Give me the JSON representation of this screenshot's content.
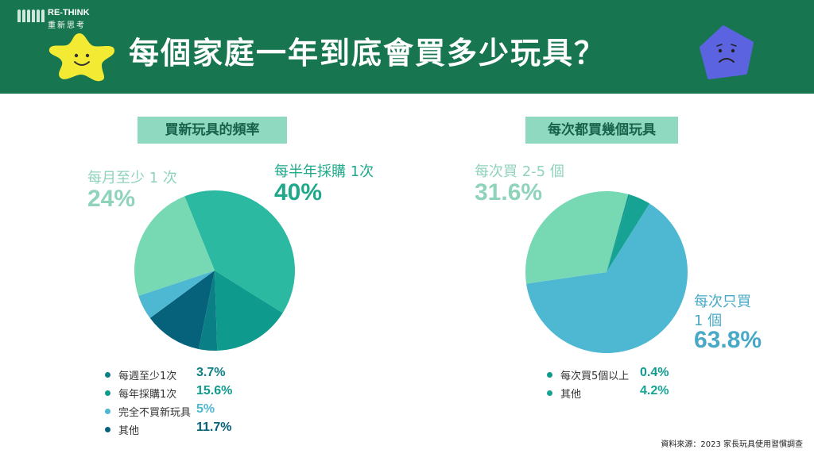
{
  "logo": {
    "name": "RE-THINK",
    "sub": "重新思考"
  },
  "title": "每個家庭一年到底會買多少玩具？",
  "source": "資料來源：2023 家長玩具使用習慣調查",
  "colors": {
    "header": "#17764f",
    "badge": "#8fd9c0"
  },
  "icons": [
    "star-smiley-icon",
    "pentagon-sad-icon",
    "people-logo-icon"
  ],
  "chart_data": [
    {
      "type": "pie",
      "title": "買新玩具的頻率",
      "slices": [
        {
          "label": "每半年採購 1次",
          "value": 40,
          "display": "40%",
          "color": "#2bb9a1"
        },
        {
          "label": "每年採購1次",
          "value": 15.6,
          "display": "15.6%",
          "color": "#0f9a8e"
        },
        {
          "label": "每週至少1次",
          "value": 3.7,
          "display": "3.7%",
          "color": "#0b7f86"
        },
        {
          "label": "其他",
          "value": 11.7,
          "display": "11.7%",
          "color": "#06617a"
        },
        {
          "label": "完全不買新玩具",
          "value": 5,
          "display": "5%",
          "color": "#4eb7d2"
        },
        {
          "label": "每月至少 1 次",
          "value": 24,
          "display": "24%",
          "color": "#77d9b3"
        }
      ],
      "callouts": [
        {
          "label": "每月至少 1 次",
          "value": "24%"
        },
        {
          "label": "每半年採購 1次",
          "value": "40%"
        }
      ],
      "legend": [
        {
          "label": "每週至少1次",
          "value": "3.7%",
          "color": "#0b7f86"
        },
        {
          "label": "每年採購1次",
          "value": "15.6%",
          "color": "#0f9a8e"
        },
        {
          "label": "完全不買新玩具",
          "value": "5%",
          "color": "#4eb7d2"
        },
        {
          "label": "其他",
          "value": "11.7%",
          "color": "#06617a"
        }
      ]
    },
    {
      "type": "pie",
      "title": "每次都買幾個玩具",
      "slices": [
        {
          "label": "其他",
          "value": 4.2,
          "display": "4.2%",
          "color": "#16a394"
        },
        {
          "label": "每次只買 1 個",
          "value": 63.8,
          "display": "63.8%",
          "color": "#4eb7d2"
        },
        {
          "label": "每次買 2-5 個",
          "value": 31.6,
          "display": "31.6%",
          "color": "#77d9b3"
        },
        {
          "label": "每次買5個以上",
          "value": 0.4,
          "display": "0.4%",
          "color": "#0f9a8e"
        }
      ],
      "callouts": [
        {
          "label": "每次買 2-5 個",
          "value": "31.6%"
        },
        {
          "label": "每次只買",
          "label2": "1 個",
          "value": "63.8%"
        }
      ],
      "legend": [
        {
          "label": "每次買5個以上",
          "value": "0.4%",
          "color": "#0f9a8e"
        },
        {
          "label": "其他",
          "value": "4.2%",
          "color": "#16a394"
        }
      ]
    }
  ]
}
